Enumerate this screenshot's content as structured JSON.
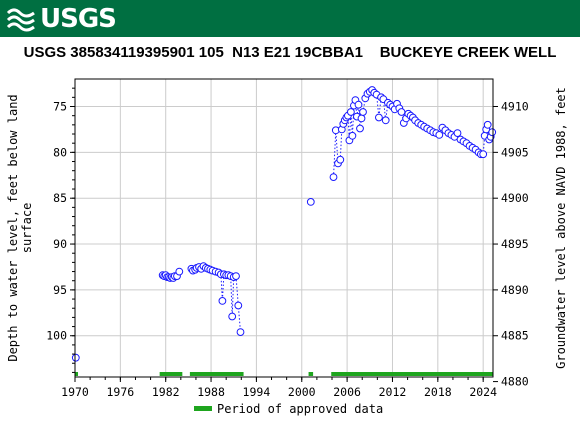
{
  "header": {
    "logo_text": "USGS",
    "logo_icon": "usgs-wave-icon",
    "banner_color": "#006f41"
  },
  "chart_data": {
    "type": "scatter",
    "title": "USGS 385834119395901 105  N13 E21 19CBBA1    BUCKEYE CREEK WELL",
    "ylabel_left": [
      "Depth to water level, feet below land",
      "surface"
    ],
    "ylabel_right": "Groundwater level above NAVD 1988, feet",
    "x_tick_labels": [
      "1970",
      "1976",
      "1982",
      "1988",
      "1994",
      "2000",
      "2006",
      "2012",
      "2018",
      "2024"
    ],
    "x_ticks": [
      1970,
      1976,
      1982,
      1988,
      1994,
      2000,
      2006,
      2012,
      2018,
      2024
    ],
    "xlim": [
      1970,
      2025.3
    ],
    "y_left_ticks": [
      75,
      80,
      85,
      90,
      95,
      100
    ],
    "y_left_tick_labels": [
      "75",
      "80",
      "85",
      "90",
      "95",
      "100"
    ],
    "ylim_left": [
      72,
      104.5
    ],
    "y_right_ticks": [
      4910,
      4905,
      4900,
      4895,
      4890,
      4885,
      4880
    ],
    "y_right_tick_labels": [
      "4910",
      "4905",
      "4900",
      "4895",
      "4890",
      "4885",
      "4880"
    ],
    "datum_offset": 4985,
    "grid": true,
    "marker_color": "#1a1aff",
    "approved_color": "#1ea51e",
    "series": [
      {
        "name": "",
        "segments": [
          [
            [
              1970.1,
              102.4
            ]
          ],
          [
            [
              1981.6,
              93.4
            ],
            [
              1981.8,
              93.5
            ],
            [
              1982.0,
              93.4
            ],
            [
              1982.2,
              93.6
            ],
            [
              1982.4,
              93.6
            ],
            [
              1982.6,
              93.7
            ],
            [
              1982.8,
              93.6
            ],
            [
              1983.0,
              93.7
            ],
            [
              1983.2,
              93.5
            ],
            [
              1983.5,
              93.5
            ],
            [
              1983.8,
              93.0
            ]
          ],
          [
            [
              1985.4,
              92.7
            ],
            [
              1985.6,
              92.9
            ],
            [
              1985.9,
              92.8
            ],
            [
              1986.1,
              92.6
            ],
            [
              1986.4,
              92.5
            ],
            [
              1986.7,
              92.7
            ],
            [
              1987.0,
              92.4
            ],
            [
              1987.3,
              92.6
            ],
            [
              1987.6,
              92.7
            ],
            [
              1987.9,
              92.8
            ],
            [
              1988.2,
              92.9
            ],
            [
              1988.6,
              93.0
            ],
            [
              1989.0,
              93.1
            ],
            [
              1989.3,
              93.3
            ],
            [
              1989.5,
              96.2
            ],
            [
              1989.7,
              93.3
            ],
            [
              1990.0,
              93.4
            ],
            [
              1990.3,
              93.4
            ],
            [
              1990.6,
              93.5
            ],
            [
              1990.8,
              97.9
            ],
            [
              1991.0,
              93.6
            ],
            [
              1991.3,
              93.5
            ],
            [
              1991.6,
              96.7
            ],
            [
              1991.9,
              99.6
            ]
          ],
          [
            [
              2001.2,
              85.4
            ]
          ],
          [
            [
              2004.2,
              82.7
            ],
            [
              2004.5,
              77.6
            ],
            [
              2004.8,
              81.2
            ],
            [
              2005.1,
              80.8
            ],
            [
              2005.3,
              77.5
            ],
            [
              2005.5,
              76.9
            ],
            [
              2005.7,
              76.5
            ],
            [
              2005.9,
              76.2
            ],
            [
              2006.1,
              76.0
            ],
            [
              2006.3,
              78.7
            ],
            [
              2006.5,
              75.6
            ],
            [
              2006.7,
              78.2
            ],
            [
              2006.9,
              74.9
            ],
            [
              2007.1,
              74.3
            ],
            [
              2007.3,
              76.1
            ],
            [
              2007.5,
              74.8
            ],
            [
              2007.7,
              77.4
            ],
            [
              2007.9,
              76.3
            ],
            [
              2008.1,
              75.6
            ],
            [
              2008.4,
              74.1
            ],
            [
              2008.7,
              73.6
            ],
            [
              2009.0,
              73.4
            ],
            [
              2009.3,
              73.2
            ],
            [
              2009.6,
              73.5
            ],
            [
              2009.9,
              73.7
            ],
            [
              2010.2,
              76.2
            ],
            [
              2010.5,
              74.0
            ],
            [
              2010.8,
              74.2
            ],
            [
              2011.1,
              76.5
            ],
            [
              2011.4,
              74.6
            ],
            [
              2011.7,
              74.8
            ],
            [
              2012.0,
              75.0
            ],
            [
              2012.3,
              75.3
            ],
            [
              2012.6,
              74.7
            ],
            [
              2012.9,
              75.2
            ],
            [
              2013.2,
              75.6
            ],
            [
              2013.5,
              76.8
            ],
            [
              2013.8,
              76.3
            ],
            [
              2014.1,
              75.8
            ],
            [
              2014.4,
              76.0
            ],
            [
              2014.7,
              76.2
            ],
            [
              2015.0,
              76.5
            ],
            [
              2015.4,
              76.8
            ],
            [
              2015.8,
              77.0
            ],
            [
              2016.2,
              77.2
            ],
            [
              2016.6,
              77.4
            ],
            [
              2017.0,
              77.6
            ],
            [
              2017.4,
              77.8
            ],
            [
              2017.8,
              77.9
            ],
            [
              2018.2,
              78.1
            ],
            [
              2018.6,
              77.3
            ],
            [
              2019.0,
              77.6
            ],
            [
              2019.4,
              77.9
            ],
            [
              2019.8,
              78.1
            ],
            [
              2020.2,
              78.3
            ],
            [
              2020.6,
              77.9
            ],
            [
              2021.0,
              78.6
            ],
            [
              2021.4,
              78.8
            ],
            [
              2021.8,
              79.0
            ],
            [
              2022.2,
              79.3
            ],
            [
              2022.6,
              79.5
            ],
            [
              2023.0,
              79.7
            ],
            [
              2023.4,
              80.0
            ],
            [
              2023.7,
              80.2
            ],
            [
              2024.0,
              80.2
            ],
            [
              2024.2,
              78.2
            ],
            [
              2024.4,
              77.5
            ],
            [
              2024.6,
              77.0
            ],
            [
              2024.8,
              78.6
            ],
            [
              2025.0,
              78.3
            ],
            [
              2025.2,
              77.8
            ]
          ]
        ]
      }
    ],
    "approved_periods": [
      [
        1970.0,
        1970.4
      ],
      [
        1981.2,
        1984.2
      ],
      [
        1985.2,
        1992.3
      ],
      [
        2000.9,
        2001.5
      ],
      [
        2003.9,
        2025.3
      ]
    ],
    "legend": {
      "label": "Period of approved data",
      "placement": "bottom-center"
    }
  }
}
